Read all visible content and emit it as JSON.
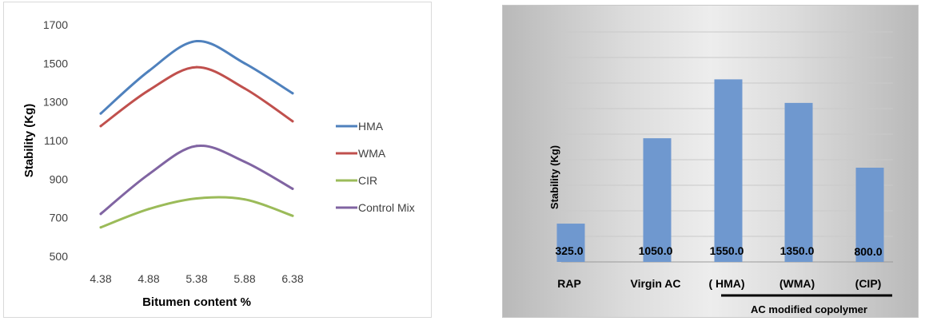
{
  "chart_data": [
    {
      "type": "line",
      "xlabel": "Bitumen content %",
      "ylabel": "Stability (Kg)",
      "x": [
        "4.38",
        "4.88",
        "5.38",
        "5.88",
        "6.38"
      ],
      "ylim": [
        500,
        1700
      ],
      "yticks": [
        "500",
        "700",
        "900",
        "1100",
        "1300",
        "1500",
        "1700"
      ],
      "grid": false,
      "legend_position": "right",
      "series": [
        {
          "name": "HMA",
          "color": "#4f81bd",
          "values": [
            1240,
            1460,
            1615,
            1500,
            1345
          ]
        },
        {
          "name": "WMA",
          "color": "#c0504d",
          "values": [
            1175,
            1360,
            1480,
            1370,
            1200
          ]
        },
        {
          "name": "CIR",
          "color": "#9bbb59",
          "values": [
            650,
            745,
            800,
            795,
            710
          ]
        },
        {
          "name": "Control Mix",
          "color": "#8064a2",
          "values": [
            720,
            925,
            1072,
            990,
            850
          ]
        }
      ]
    },
    {
      "type": "bar",
      "ylabel": "Stability (Kg)",
      "categories": [
        "RAP",
        "Virgin AC",
        "( HMA)",
        "(WMA)",
        "(CIP)"
      ],
      "values": [
        325.0,
        1050.0,
        1550.0,
        1350.0,
        800.0
      ],
      "data_labels": [
        "325.0",
        "1050.0",
        "1550.0",
        "1350.0",
        "800.0"
      ],
      "group_label": "AC modified copolymer",
      "bar_color": "#6f98cf",
      "grid": true
    }
  ]
}
